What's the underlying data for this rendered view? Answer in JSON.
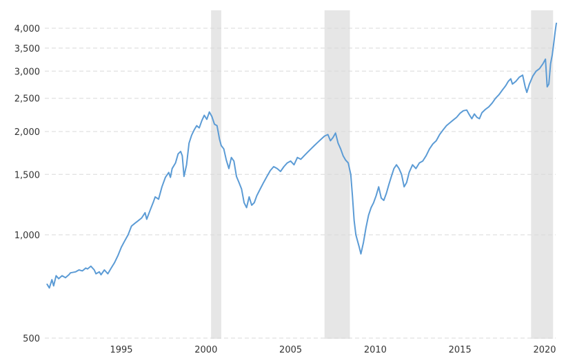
{
  "chart_data": {
    "type": "line",
    "y_scale": "log",
    "ylim": [
      500,
      4300
    ],
    "xlim": [
      1990.6,
      2020.7
    ],
    "y_ticks": [
      500,
      1000,
      1500,
      2000,
      2500,
      3000,
      3500,
      4000
    ],
    "y_tick_labels": [
      "500",
      "1,000",
      "1,500",
      "2,000",
      "2,500",
      "3,000",
      "3,500",
      "4,000"
    ],
    "x_ticks": [
      1995,
      2000,
      2005,
      2010,
      2015,
      2020
    ],
    "x_tick_labels": [
      "1995",
      "2000",
      "2005",
      "2010",
      "2015",
      "2020"
    ],
    "grid": "horizontal dashed",
    "colors": {
      "line": "#5b9bd5",
      "recession_band": "#e6e6e6",
      "grid": "#d8d8d8"
    },
    "recession_bands": [
      {
        "start": 2000.3,
        "end": 2000.9
      },
      {
        "start": 2007.0,
        "end": 2008.5
      },
      {
        "start": 2019.2,
        "end": 2020.5
      }
    ],
    "series": [
      {
        "points": [
          [
            1990.6,
            720
          ],
          [
            1990.75,
            700
          ],
          [
            1990.9,
            740
          ],
          [
            1991.0,
            710
          ],
          [
            1991.15,
            760
          ],
          [
            1991.3,
            745
          ],
          [
            1991.5,
            760
          ],
          [
            1991.7,
            750
          ],
          [
            1991.9,
            765
          ],
          [
            1992.0,
            775
          ],
          [
            1992.3,
            780
          ],
          [
            1992.5,
            790
          ],
          [
            1992.7,
            785
          ],
          [
            1992.9,
            800
          ],
          [
            1993.0,
            795
          ],
          [
            1993.2,
            810
          ],
          [
            1993.4,
            790
          ],
          [
            1993.5,
            770
          ],
          [
            1993.7,
            780
          ],
          [
            1993.8,
            765
          ],
          [
            1994.0,
            790
          ],
          [
            1994.2,
            770
          ],
          [
            1994.4,
            800
          ],
          [
            1994.6,
            830
          ],
          [
            1994.8,
            870
          ],
          [
            1995.0,
            920
          ],
          [
            1995.2,
            960
          ],
          [
            1995.4,
            1000
          ],
          [
            1995.6,
            1060
          ],
          [
            1995.8,
            1080
          ],
          [
            1996.0,
            1100
          ],
          [
            1996.2,
            1120
          ],
          [
            1996.4,
            1160
          ],
          [
            1996.5,
            1110
          ],
          [
            1996.7,
            1180
          ],
          [
            1996.9,
            1250
          ],
          [
            1997.0,
            1290
          ],
          [
            1997.2,
            1270
          ],
          [
            1997.4,
            1380
          ],
          [
            1997.6,
            1470
          ],
          [
            1997.8,
            1520
          ],
          [
            1997.9,
            1470
          ],
          [
            1998.0,
            1560
          ],
          [
            1998.2,
            1620
          ],
          [
            1998.35,
            1720
          ],
          [
            1998.5,
            1750
          ],
          [
            1998.6,
            1700
          ],
          [
            1998.7,
            1480
          ],
          [
            1998.85,
            1600
          ],
          [
            1999.0,
            1850
          ],
          [
            1999.15,
            1950
          ],
          [
            1999.3,
            2020
          ],
          [
            1999.45,
            2080
          ],
          [
            1999.6,
            2050
          ],
          [
            1999.75,
            2150
          ],
          [
            1999.9,
            2230
          ],
          [
            2000.05,
            2170
          ],
          [
            2000.2,
            2280
          ],
          [
            2000.35,
            2210
          ],
          [
            2000.5,
            2100
          ],
          [
            2000.65,
            2080
          ],
          [
            2000.8,
            1900
          ],
          [
            2000.9,
            1820
          ],
          [
            2001.05,
            1780
          ],
          [
            2001.2,
            1650
          ],
          [
            2001.35,
            1560
          ],
          [
            2001.5,
            1680
          ],
          [
            2001.65,
            1640
          ],
          [
            2001.8,
            1480
          ],
          [
            2001.95,
            1420
          ],
          [
            2002.1,
            1360
          ],
          [
            2002.25,
            1240
          ],
          [
            2002.4,
            1200
          ],
          [
            2002.55,
            1290
          ],
          [
            2002.7,
            1220
          ],
          [
            2002.85,
            1240
          ],
          [
            2003.0,
            1300
          ],
          [
            2003.2,
            1360
          ],
          [
            2003.4,
            1420
          ],
          [
            2003.6,
            1480
          ],
          [
            2003.8,
            1540
          ],
          [
            2004.0,
            1580
          ],
          [
            2004.2,
            1560
          ],
          [
            2004.4,
            1530
          ],
          [
            2004.6,
            1580
          ],
          [
            2004.8,
            1620
          ],
          [
            2005.0,
            1640
          ],
          [
            2005.2,
            1600
          ],
          [
            2005.4,
            1680
          ],
          [
            2005.6,
            1660
          ],
          [
            2005.8,
            1700
          ],
          [
            2006.0,
            1740
          ],
          [
            2006.2,
            1780
          ],
          [
            2006.4,
            1820
          ],
          [
            2006.6,
            1860
          ],
          [
            2006.8,
            1900
          ],
          [
            2007.0,
            1940
          ],
          [
            2007.2,
            1960
          ],
          [
            2007.35,
            1880
          ],
          [
            2007.5,
            1920
          ],
          [
            2007.65,
            1980
          ],
          [
            2007.8,
            1850
          ],
          [
            2007.95,
            1780
          ],
          [
            2008.1,
            1700
          ],
          [
            2008.25,
            1650
          ],
          [
            2008.4,
            1620
          ],
          [
            2008.55,
            1500
          ],
          [
            2008.65,
            1300
          ],
          [
            2008.75,
            1100
          ],
          [
            2008.85,
            1000
          ],
          [
            2008.95,
            960
          ],
          [
            2009.05,
            920
          ],
          [
            2009.15,
            880
          ],
          [
            2009.3,
            950
          ],
          [
            2009.45,
            1050
          ],
          [
            2009.6,
            1140
          ],
          [
            2009.75,
            1200
          ],
          [
            2009.9,
            1240
          ],
          [
            2010.05,
            1300
          ],
          [
            2010.2,
            1380
          ],
          [
            2010.35,
            1280
          ],
          [
            2010.5,
            1260
          ],
          [
            2010.65,
            1320
          ],
          [
            2010.8,
            1400
          ],
          [
            2010.95,
            1480
          ],
          [
            2011.1,
            1560
          ],
          [
            2011.25,
            1600
          ],
          [
            2011.4,
            1560
          ],
          [
            2011.55,
            1500
          ],
          [
            2011.7,
            1380
          ],
          [
            2011.85,
            1420
          ],
          [
            2012.0,
            1520
          ],
          [
            2012.2,
            1600
          ],
          [
            2012.4,
            1560
          ],
          [
            2012.6,
            1620
          ],
          [
            2012.8,
            1640
          ],
          [
            2013.0,
            1700
          ],
          [
            2013.2,
            1780
          ],
          [
            2013.4,
            1840
          ],
          [
            2013.6,
            1880
          ],
          [
            2013.8,
            1960
          ],
          [
            2014.0,
            2020
          ],
          [
            2014.2,
            2080
          ],
          [
            2014.4,
            2120
          ],
          [
            2014.6,
            2160
          ],
          [
            2014.8,
            2200
          ],
          [
            2015.0,
            2260
          ],
          [
            2015.2,
            2300
          ],
          [
            2015.4,
            2310
          ],
          [
            2015.55,
            2240
          ],
          [
            2015.7,
            2180
          ],
          [
            2015.85,
            2250
          ],
          [
            2016.0,
            2200
          ],
          [
            2016.15,
            2180
          ],
          [
            2016.3,
            2270
          ],
          [
            2016.5,
            2320
          ],
          [
            2016.7,
            2360
          ],
          [
            2016.9,
            2420
          ],
          [
            2017.1,
            2500
          ],
          [
            2017.3,
            2560
          ],
          [
            2017.5,
            2640
          ],
          [
            2017.7,
            2720
          ],
          [
            2017.85,
            2800
          ],
          [
            2018.0,
            2850
          ],
          [
            2018.1,
            2750
          ],
          [
            2018.3,
            2800
          ],
          [
            2018.5,
            2880
          ],
          [
            2018.7,
            2920
          ],
          [
            2018.85,
            2700
          ],
          [
            2018.95,
            2600
          ],
          [
            2019.1,
            2750
          ],
          [
            2019.3,
            2900
          ],
          [
            2019.5,
            3000
          ],
          [
            2019.7,
            3050
          ],
          [
            2019.9,
            3150
          ],
          [
            2020.05,
            3250
          ],
          [
            2020.15,
            2700
          ],
          [
            2020.25,
            2750
          ],
          [
            2020.35,
            3150
          ],
          [
            2020.45,
            3350
          ],
          [
            2020.55,
            3650
          ],
          [
            2020.62,
            3900
          ],
          [
            2020.68,
            4100
          ],
          [
            2020.7,
            4150
          ]
        ]
      }
    ]
  }
}
